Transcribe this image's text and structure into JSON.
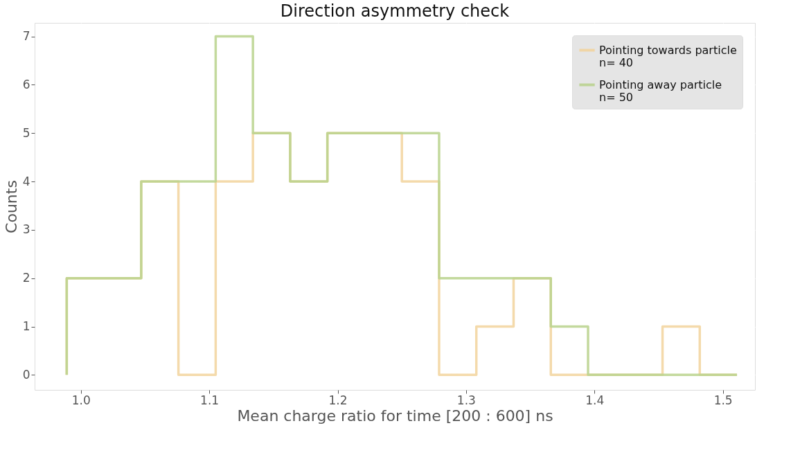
{
  "chart_data": {
    "type": "histogram",
    "title": "Direction asymmetry check",
    "xlabel": "Mean charge ratio for time [200 : 600] ns",
    "ylabel": "Counts",
    "bins": [
      0.989,
      1.018,
      1.047,
      1.076,
      1.105,
      1.134,
      1.163,
      1.192,
      1.221,
      1.25,
      1.279,
      1.308,
      1.337,
      1.366,
      1.395,
      1.424,
      1.453,
      1.482,
      1.511
    ],
    "series": [
      {
        "name": "Pointing towards particle\nn= 40",
        "color": "#f2d39c",
        "values": [
          2,
          2,
          4,
          0,
          4,
          5,
          4,
          5,
          5,
          4,
          0,
          1,
          2,
          0,
          0,
          0,
          1,
          0
        ]
      },
      {
        "name": "Pointing away particle\nn= 50",
        "color": "#b9d28c",
        "values": [
          2,
          2,
          4,
          4,
          7,
          5,
          4,
          5,
          5,
          5,
          2,
          2,
          2,
          1,
          0,
          0,
          0,
          0
        ]
      }
    ],
    "xlim": [
      0.964,
      1.525
    ],
    "ylim": [
      -0.31,
      7.28
    ],
    "xticks": [
      {
        "value": 1.0,
        "label": "1.0"
      },
      {
        "value": 1.1,
        "label": "1.1"
      },
      {
        "value": 1.2,
        "label": "1.2"
      },
      {
        "value": 1.3,
        "label": "1.3"
      },
      {
        "value": 1.4,
        "label": "1.4"
      },
      {
        "value": 1.5,
        "label": "1.5"
      }
    ],
    "yticks": [
      0,
      1,
      2,
      3,
      4,
      5,
      6,
      7
    ],
    "grid": true,
    "legend": "top right",
    "line_style": "solid"
  }
}
